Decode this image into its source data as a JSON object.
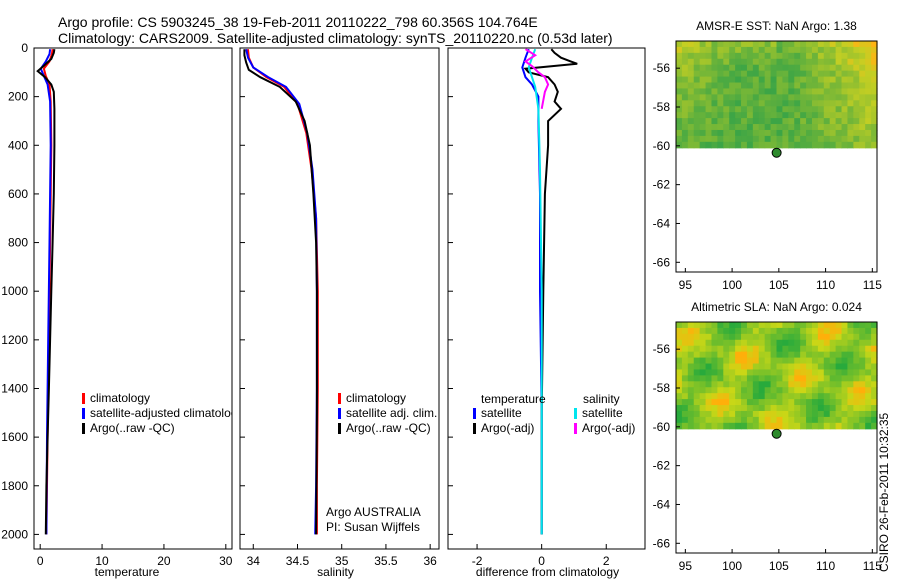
{
  "header": {
    "title_line1": "Argo profile: CS 5903245_38 19-Feb-2011 20110222_798 60.356S 104.764E",
    "title_line2": "Climatology: CARS2009. Satellite-adjusted climatology: synTS_20110220.nc (0.53d later)"
  },
  "side_text": "CSIRO 26-Feb-2011 10:32:35",
  "colors": {
    "climatology": "#ff0000",
    "satellite": "#0000ff",
    "argo": "#000000",
    "sal_satellite": "#00e5ee",
    "sal_argo": "#ff00ff",
    "map_dot": "#2e8b2e"
  },
  "chart_data": [
    {
      "type": "line",
      "id": "temperature",
      "xlabel": "temperature",
      "xlim": [
        -1,
        31
      ],
      "ylim": [
        2060,
        0
      ],
      "xticks": [
        0,
        10,
        20,
        30
      ],
      "yticks": [
        0,
        200,
        400,
        600,
        800,
        1000,
        1200,
        1400,
        1600,
        1800,
        2000
      ],
      "legend": [
        "climatology",
        "satellite-adjusted climatology",
        "Argo(..raw -QC)"
      ],
      "series": [
        {
          "name": "climatology",
          "color": "#ff0000",
          "points": [
            [
              2.0,
              5
            ],
            [
              1.9,
              25
            ],
            [
              1.5,
              55
            ],
            [
              0.6,
              85
            ],
            [
              0.9,
              115
            ],
            [
              1.5,
              150
            ],
            [
              1.7,
              220
            ],
            [
              1.8,
              400
            ],
            [
              1.6,
              800
            ],
            [
              1.4,
              1200
            ],
            [
              1.2,
              1600
            ],
            [
              1.0,
              2000
            ]
          ]
        },
        {
          "name": "satellite-adjusted climatology",
          "color": "#0000ff",
          "points": [
            [
              1.6,
              5
            ],
            [
              1.5,
              25
            ],
            [
              0.9,
              55
            ],
            [
              0.1,
              85
            ],
            [
              0.6,
              115
            ],
            [
              1.2,
              150
            ],
            [
              1.6,
              220
            ],
            [
              1.7,
              400
            ],
            [
              1.5,
              800
            ],
            [
              1.3,
              1200
            ],
            [
              1.1,
              1600
            ],
            [
              1.0,
              2000
            ]
          ]
        },
        {
          "name": "Argo(..raw -QC)",
          "color": "#000000",
          "points": [
            [
              2.3,
              5
            ],
            [
              2.2,
              20
            ],
            [
              1.8,
              45
            ],
            [
              0.5,
              75
            ],
            [
              -0.4,
              95
            ],
            [
              0.8,
              120
            ],
            [
              1.8,
              150
            ],
            [
              2.2,
              180
            ],
            [
              2.3,
              250
            ],
            [
              2.3,
              400
            ],
            [
              2.2,
              600
            ],
            [
              2.0,
              800
            ],
            [
              1.8,
              1000
            ],
            [
              1.6,
              1200
            ],
            [
              1.4,
              1400
            ],
            [
              1.2,
              1600
            ],
            [
              1.0,
              1800
            ],
            [
              0.9,
              2000
            ]
          ]
        }
      ]
    },
    {
      "type": "line",
      "id": "salinity",
      "xlabel": "salinity",
      "xlim": [
        33.85,
        36.1
      ],
      "ylim": [
        2060,
        0
      ],
      "xticks": [
        34,
        34.5,
        35,
        35.5,
        36
      ],
      "legend": [
        "climatology",
        "satellite adj. clim.",
        "Argo(..raw -QC)"
      ],
      "annotation": [
        "Argo AUSTRALIA",
        "PI: Susan Wijffels"
      ],
      "series": [
        {
          "name": "climatology",
          "color": "#ff0000",
          "points": [
            [
              33.94,
              5
            ],
            [
              33.95,
              40
            ],
            [
              34.0,
              80
            ],
            [
              34.15,
              120
            ],
            [
              34.35,
              160
            ],
            [
              34.5,
              230
            ],
            [
              34.6,
              350
            ],
            [
              34.66,
              500
            ],
            [
              34.71,
              700
            ],
            [
              34.73,
              1000
            ],
            [
              34.73,
              1400
            ],
            [
              34.72,
              1800
            ],
            [
              34.72,
              2000
            ]
          ]
        },
        {
          "name": "satellite adj. clim.",
          "color": "#0000ff",
          "points": [
            [
              33.92,
              5
            ],
            [
              33.94,
              40
            ],
            [
              34.0,
              80
            ],
            [
              34.17,
              120
            ],
            [
              34.37,
              160
            ],
            [
              34.52,
              230
            ],
            [
              34.61,
              350
            ],
            [
              34.67,
              500
            ],
            [
              34.71,
              700
            ],
            [
              34.72,
              1000
            ],
            [
              34.72,
              1400
            ],
            [
              34.71,
              1800
            ],
            [
              34.7,
              2000
            ]
          ]
        },
        {
          "name": "Argo(..raw -QC)",
          "color": "#000000",
          "points": [
            [
              33.9,
              5
            ],
            [
              33.9,
              30
            ],
            [
              33.92,
              60
            ],
            [
              33.95,
              90
            ],
            [
              34.08,
              120
            ],
            [
              34.3,
              160
            ],
            [
              34.48,
              220
            ],
            [
              34.58,
              300
            ],
            [
              34.64,
              400
            ],
            [
              34.68,
              600
            ],
            [
              34.71,
              800
            ],
            [
              34.72,
              1000
            ],
            [
              34.72,
              1500
            ],
            [
              34.71,
              2000
            ]
          ]
        }
      ]
    },
    {
      "type": "line",
      "id": "difference",
      "xlabel": "difference from climatology",
      "xlim": [
        -2.9,
        3.2
      ],
      "ylim": [
        2060,
        0
      ],
      "xticks": [
        -2,
        0,
        2
      ],
      "legend_left": {
        "title": "temperature",
        "items": [
          "satellite",
          "Argo(-adj)"
        ]
      },
      "legend_right": {
        "title": "salinity",
        "items": [
          "satellite",
          "Argo(-adj)"
        ]
      },
      "series": [
        {
          "name": "temp satellite",
          "color": "#0000ff",
          "points": [
            [
              -0.4,
              5
            ],
            [
              -0.5,
              40
            ],
            [
              -0.6,
              80
            ],
            [
              -0.5,
              120
            ],
            [
              -0.3,
              150
            ],
            [
              -0.1,
              200
            ],
            [
              -0.1,
              300
            ],
            [
              -0.05,
              600
            ],
            [
              -0.05,
              1000
            ],
            [
              0,
              1500
            ],
            [
              0,
              2000
            ]
          ]
        },
        {
          "name": "temp Argo(-adj)",
          "color": "#000000",
          "points": [
            [
              0.3,
              5
            ],
            [
              0.4,
              20
            ],
            [
              0.6,
              40
            ],
            [
              0.9,
              55
            ],
            [
              1.1,
              65
            ],
            [
              0.3,
              75
            ],
            [
              -0.5,
              85
            ],
            [
              -0.4,
              100
            ],
            [
              0.2,
              120
            ],
            [
              0.4,
              150
            ],
            [
              0.5,
              180
            ],
            [
              0.4,
              220
            ],
            [
              0.6,
              250
            ],
            [
              0.2,
              300
            ],
            [
              0.2,
              400
            ],
            [
              0.1,
              600
            ],
            [
              0.05,
              1000
            ],
            [
              0,
              1500
            ],
            [
              0,
              2000
            ]
          ]
        },
        {
          "name": "sal satellite",
          "color": "#00e5ee",
          "points": [
            [
              -0.2,
              5
            ],
            [
              -0.3,
              40
            ],
            [
              -0.4,
              80
            ],
            [
              -0.3,
              120
            ],
            [
              -0.2,
              160
            ],
            [
              -0.1,
              250
            ],
            [
              -0.05,
              500
            ],
            [
              0,
              1000
            ],
            [
              0,
              2000
            ]
          ]
        },
        {
          "name": "sal Argo(-adj)",
          "color": "#ff00ff",
          "points": [
            [
              -0.5,
              5
            ],
            [
              -0.2,
              30
            ],
            [
              -0.5,
              55
            ],
            [
              -0.3,
              75
            ],
            [
              -0.1,
              100
            ],
            [
              0.1,
              120
            ],
            [
              0.2,
              150
            ],
            [
              0.1,
              180
            ],
            [
              0,
              250
            ]
          ]
        }
      ]
    },
    {
      "type": "heatmap",
      "id": "sst_map",
      "title": "AMSR-E SST: NaN Argo: 1.38",
      "xlim": [
        94,
        115.5
      ],
      "ylim": [
        -66.5,
        -54.6
      ],
      "xticks": [
        95,
        100,
        105,
        110,
        115
      ],
      "yticks": [
        -56,
        -58,
        -60,
        -62,
        -64,
        -66
      ],
      "data_lat_range": [
        -60.1,
        -54.6
      ],
      "marker": {
        "lon": 104.764,
        "lat": -60.356
      }
    },
    {
      "type": "heatmap",
      "id": "sla_map",
      "title": "Altimetric SLA: NaN Argo: 0.024",
      "xlim": [
        94,
        115.5
      ],
      "ylim": [
        -66.5,
        -54.6
      ],
      "xticks": [
        95,
        100,
        105,
        110,
        115
      ],
      "yticks": [
        -56,
        -58,
        -60,
        -62,
        -64,
        -66
      ],
      "data_lat_range": [
        -60.1,
        -54.6
      ],
      "marker": {
        "lon": 104.764,
        "lat": -60.356
      }
    }
  ]
}
